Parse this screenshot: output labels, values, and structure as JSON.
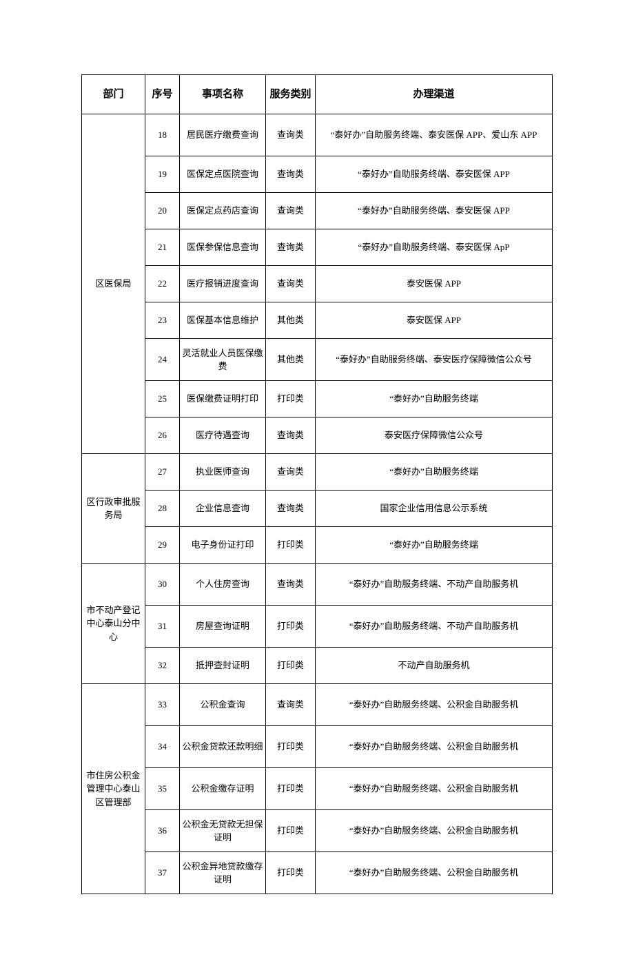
{
  "headers": {
    "dept": "部门",
    "seq": "序号",
    "item": "事项名称",
    "cat": "服务类别",
    "channel": "办理渠道"
  },
  "groups": [
    {
      "dept": "区医保局",
      "rows": [
        {
          "seq": "18",
          "item": "居民医疗缴费查询",
          "cat": "查询类",
          "channel": "“泰好办”自助服务终端、泰安医保 APP、爱山东 APP",
          "tall": true
        },
        {
          "seq": "19",
          "item": "医保定点医院查询",
          "cat": "查询类",
          "channel": "“泰好办”自助服务终端、泰安医保 APP"
        },
        {
          "seq": "20",
          "item": "医保定点药店查询",
          "cat": "查询类",
          "channel": "“泰好办”自助服务终端、泰安医保 APP"
        },
        {
          "seq": "21",
          "item": "医保参保信息查询",
          "cat": "查询类",
          "channel": "“泰好办”自助服务终端、泰安医保 ApP"
        },
        {
          "seq": "22",
          "item": "医疗报销进度查询",
          "cat": "查询类",
          "channel": "泰安医保 APP"
        },
        {
          "seq": "23",
          "item": "医保基本信息维护",
          "cat": "其他类",
          "channel": "泰安医保 APP"
        },
        {
          "seq": "24",
          "item": "灵活就业人员医保缴费",
          "cat": "其他类",
          "channel": "“泰好办”自助服务终端、泰安医疗保障微信公众号",
          "tall": true
        },
        {
          "seq": "25",
          "item": "医保缴费证明打印",
          "cat": "打印类",
          "channel": "“泰好办”自助服务终端"
        },
        {
          "seq": "26",
          "item": "医疗待遇查询",
          "cat": "查询类",
          "channel": "泰安医疗保障微信公众号"
        }
      ]
    },
    {
      "dept": "区行政审批服务局",
      "rows": [
        {
          "seq": "27",
          "item": "执业医师查询",
          "cat": "查询类",
          "channel": "“泰好办”自助服务终端"
        },
        {
          "seq": "28",
          "item": "企业信息查询",
          "cat": "查询类",
          "channel": "国家企业信用信息公示系统"
        },
        {
          "seq": "29",
          "item": "电子身份证打印",
          "cat": "打印类",
          "channel": "“泰好办”自助服务终端"
        }
      ]
    },
    {
      "dept": "市不动产登记中心泰山分中心",
      "rows": [
        {
          "seq": "30",
          "item": "个人住房查询",
          "cat": "查询类",
          "channel": "“泰好办”自助服务终端、不动产自助服务机",
          "tall": true
        },
        {
          "seq": "31",
          "item": "房屋查询证明",
          "cat": "打印类",
          "channel": "“泰好办”自助服务终端、不动产自助服务机",
          "tall": true
        },
        {
          "seq": "32",
          "item": "抵押查封证明",
          "cat": "打印类",
          "channel": "不动产自助服务机"
        }
      ]
    },
    {
      "dept": "市住房公积金管理中心泰山区管理部",
      "rows": [
        {
          "seq": "33",
          "item": "公积金查询",
          "cat": "查询类",
          "channel": "“泰好办”自助服务终端、公积金自助服务机",
          "tall": true
        },
        {
          "seq": "34",
          "item": "公积金贷款还款明细",
          "cat": "打印类",
          "channel": "“泰好办”自助服务终端、公积金自助服务机",
          "tall": true
        },
        {
          "seq": "35",
          "item": "公积金缴存证明",
          "cat": "打印类",
          "channel": "“泰好办”自助服务终端、公积金自助服务机",
          "tall": true
        },
        {
          "seq": "36",
          "item": "公积金无贷款无担保证明",
          "cat": "打印类",
          "channel": "“泰好办”自助服务终端、公积金自助服务机",
          "tall": true
        },
        {
          "seq": "37",
          "item": "公积金异地贷款缴存证明",
          "cat": "打印类",
          "channel": "“泰好办”自助服务终端、公积金自助服务机",
          "tall": true
        }
      ]
    }
  ]
}
